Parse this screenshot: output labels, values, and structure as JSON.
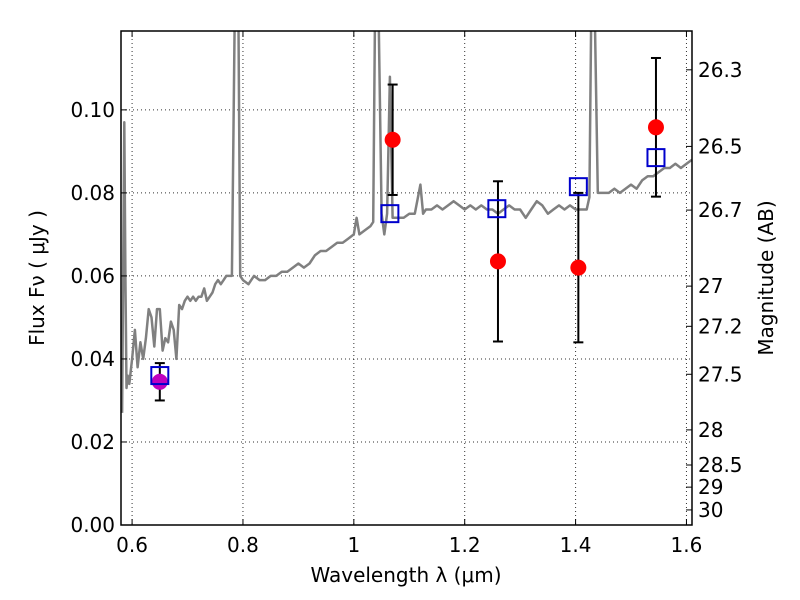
{
  "chart_data": {
    "type": "scatter",
    "title": "",
    "xlabel": "Wavelength  λ (μm)",
    "ylabel": "Flux  Fν  ( μJy )",
    "y2label": "Magnitude (AB)",
    "xlim": [
      0.58,
      1.61
    ],
    "ylim": [
      0.0,
      0.119
    ],
    "x_ticks": [
      "0.6",
      "0.8",
      "1",
      "1.2",
      "1.4",
      "1.6"
    ],
    "x_tick_values": [
      0.6,
      0.8,
      1.0,
      1.2,
      1.4,
      1.6
    ],
    "y_ticks": [
      "0.00",
      "0.02",
      "0.04",
      "0.06",
      "0.08",
      "0.10"
    ],
    "y_tick_values": [
      0.0,
      0.02,
      0.04,
      0.06,
      0.08,
      0.1
    ],
    "y2_ticks": [
      "26.3",
      "26.5",
      "26.7",
      "27",
      "27.2",
      "27.5",
      "28",
      "28.5",
      "29",
      "30"
    ],
    "y2_tick_values": [
      26.3,
      26.5,
      26.7,
      27.0,
      27.2,
      27.5,
      28.0,
      28.5,
      29.0,
      30.0
    ],
    "grid": true,
    "colors": {
      "spectrum": "#808080",
      "observed": "#ff0000",
      "observed_optical": "#bf00bf",
      "model": "#0000cc",
      "errorbar": "#000000"
    },
    "observed": [
      {
        "x": 0.65,
        "y": 0.0345,
        "err_lo": 0.0045,
        "err_hi": 0.0045,
        "color": "#bf00bf"
      },
      {
        "x": 1.07,
        "y": 0.0928,
        "err_lo": 0.0133,
        "err_hi": 0.0133,
        "color": "#ff0000"
      },
      {
        "x": 1.26,
        "y": 0.0635,
        "err_lo": 0.0193,
        "err_hi": 0.0193,
        "color": "#ff0000"
      },
      {
        "x": 1.405,
        "y": 0.062,
        "err_lo": 0.018,
        "err_hi": 0.018,
        "color": "#ff0000"
      },
      {
        "x": 1.545,
        "y": 0.0958,
        "err_lo": 0.0167,
        "err_hi": 0.0167,
        "color": "#ff0000"
      }
    ],
    "model_points": [
      {
        "x": 0.65,
        "y": 0.036
      },
      {
        "x": 1.065,
        "y": 0.075
      },
      {
        "x": 1.258,
        "y": 0.0762
      },
      {
        "x": 1.405,
        "y": 0.0815
      },
      {
        "x": 1.545,
        "y": 0.0885
      }
    ],
    "spectrum": {
      "x": [
        0.582,
        0.586,
        0.588,
        0.59,
        0.592,
        0.595,
        0.6,
        0.605,
        0.61,
        0.615,
        0.62,
        0.625,
        0.63,
        0.635,
        0.64,
        0.645,
        0.65,
        0.655,
        0.66,
        0.665,
        0.67,
        0.675,
        0.68,
        0.685,
        0.69,
        0.695,
        0.7,
        0.705,
        0.71,
        0.715,
        0.72,
        0.725,
        0.73,
        0.735,
        0.74,
        0.745,
        0.75,
        0.755,
        0.76,
        0.765,
        0.77,
        0.775,
        0.78,
        0.785,
        0.788,
        0.79,
        0.792,
        0.795,
        0.8,
        0.81,
        0.82,
        0.83,
        0.84,
        0.85,
        0.86,
        0.87,
        0.88,
        0.89,
        0.9,
        0.91,
        0.92,
        0.93,
        0.94,
        0.95,
        0.96,
        0.97,
        0.98,
        0.99,
        1.0,
        1.005,
        1.01,
        1.02,
        1.03,
        1.035,
        1.038,
        1.04,
        1.045,
        1.05,
        1.055,
        1.06,
        1.065,
        1.07,
        1.08,
        1.09,
        1.1,
        1.11,
        1.12,
        1.125,
        1.13,
        1.14,
        1.15,
        1.16,
        1.17,
        1.18,
        1.19,
        1.2,
        1.21,
        1.22,
        1.23,
        1.24,
        1.25,
        1.26,
        1.27,
        1.28,
        1.29,
        1.3,
        1.31,
        1.32,
        1.33,
        1.34,
        1.35,
        1.36,
        1.37,
        1.38,
        1.39,
        1.4,
        1.41,
        1.42,
        1.425,
        1.428,
        1.43,
        1.435,
        1.44,
        1.445,
        1.45,
        1.46,
        1.47,
        1.48,
        1.49,
        1.5,
        1.51,
        1.52,
        1.53,
        1.54,
        1.55,
        1.56,
        1.57,
        1.58,
        1.59,
        1.6,
        1.61
      ],
      "y": [
        0.027,
        0.097,
        0.06,
        0.033,
        0.036,
        0.034,
        0.04,
        0.047,
        0.038,
        0.044,
        0.04,
        0.045,
        0.052,
        0.05,
        0.043,
        0.052,
        0.052,
        0.042,
        0.045,
        0.044,
        0.049,
        0.047,
        0.04,
        0.053,
        0.052,
        0.054,
        0.055,
        0.054,
        0.055,
        0.054,
        0.055,
        0.055,
        0.057,
        0.054,
        0.055,
        0.056,
        0.058,
        0.059,
        0.058,
        0.059,
        0.06,
        0.06,
        0.06,
        0.12,
        0.12,
        0.12,
        0.12,
        0.06,
        0.059,
        0.058,
        0.06,
        0.059,
        0.059,
        0.06,
        0.06,
        0.061,
        0.061,
        0.062,
        0.063,
        0.062,
        0.063,
        0.065,
        0.066,
        0.066,
        0.067,
        0.068,
        0.068,
        0.069,
        0.07,
        0.074,
        0.07,
        0.071,
        0.072,
        0.073,
        0.12,
        0.12,
        0.12,
        0.075,
        0.07,
        0.075,
        0.108,
        0.074,
        0.074,
        0.074,
        0.075,
        0.075,
        0.082,
        0.075,
        0.076,
        0.076,
        0.077,
        0.076,
        0.077,
        0.078,
        0.077,
        0.076,
        0.077,
        0.076,
        0.077,
        0.076,
        0.076,
        0.075,
        0.076,
        0.077,
        0.076,
        0.076,
        0.074,
        0.076,
        0.078,
        0.077,
        0.075,
        0.076,
        0.077,
        0.076,
        0.077,
        0.076,
        0.076,
        0.076,
        0.079,
        0.12,
        0.12,
        0.12,
        0.08,
        0.08,
        0.08,
        0.08,
        0.081,
        0.08,
        0.081,
        0.082,
        0.081,
        0.083,
        0.084,
        0.084,
        0.085,
        0.086,
        0.086,
        0.087,
        0.086,
        0.087,
        0.088
      ]
    }
  }
}
